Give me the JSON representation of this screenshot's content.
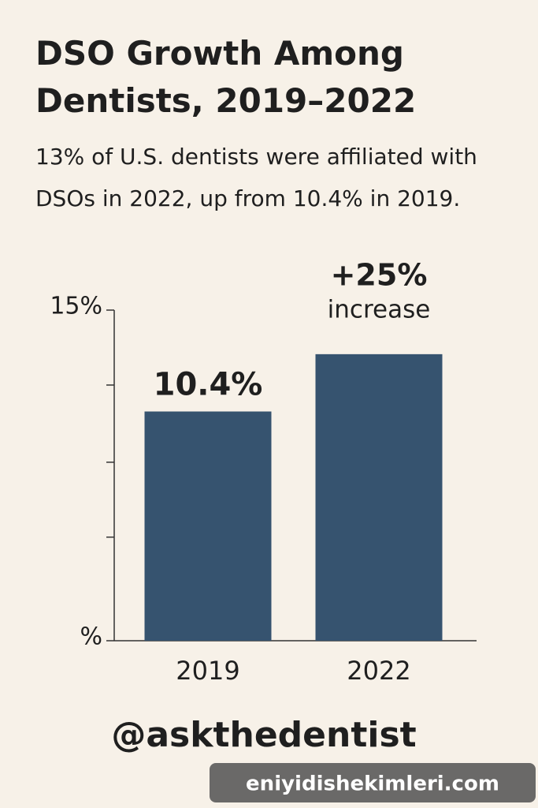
{
  "chart_data": {
    "type": "bar",
    "title": "DSO Growth Among Dentists, 2019–2022",
    "subtitle": "13% of U.S. dentists were affiliated with DSOs in 2022, up from 10.4% in 2019.",
    "categories": [
      "2019",
      "2022"
    ],
    "values": [
      10.4,
      13
    ],
    "value_labels": [
      "10.4%",
      null
    ],
    "color": "#36536f",
    "ylim": [
      0,
      15
    ],
    "yticks": [
      {
        "value": 0,
        "label": "%"
      },
      {
        "value": 15,
        "label": "15%"
      }
    ],
    "yticks_minor": [
      4.7,
      8.1,
      11.6
    ],
    "annotations": [
      "+25%",
      "increase"
    ],
    "footer": "@askthedentist",
    "watermark": "eniyidishekimleri.com"
  }
}
